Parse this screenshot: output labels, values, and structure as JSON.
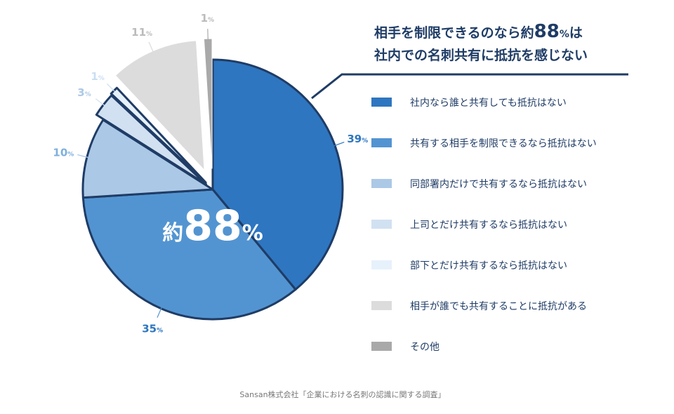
{
  "headline": {
    "line1_before": "相手を制限できるのなら約",
    "line1_number": "88",
    "line1_unit": "%",
    "line1_after": "は",
    "line2": "社内での名刺共有に抵抗を感じない"
  },
  "center_label": {
    "prefix": "約",
    "number": "88",
    "unit": "%"
  },
  "source": "Sansan株式会社「企業における名刺の認識に関する調査」",
  "chart_data": {
    "type": "pie",
    "categories": [
      "社内なら誰と共有しても抵抗はない",
      "共有する相手を制限できるなら抵抗はない",
      "同部署内だけで共有するなら抵抗はない",
      "上司とだけ共有するなら抵抗はない",
      "部下とだけ共有するなら抵抗はない",
      "相手が誰でも共有することに抵抗がある",
      "その他"
    ],
    "values": [
      39,
      35,
      10,
      3,
      1,
      11,
      1
    ],
    "value_labels": [
      "39",
      "35",
      "10",
      "3",
      "1",
      "11",
      "1"
    ],
    "unit": "%",
    "colors": [
      "#2e76c0",
      "#5294d1",
      "#abc8e6",
      "#d1e1f2",
      "#e6f1fb",
      "#dcdcdc",
      "#a9a9a9"
    ],
    "legend_placement": "right",
    "outline_color": "#1f3c66"
  }
}
